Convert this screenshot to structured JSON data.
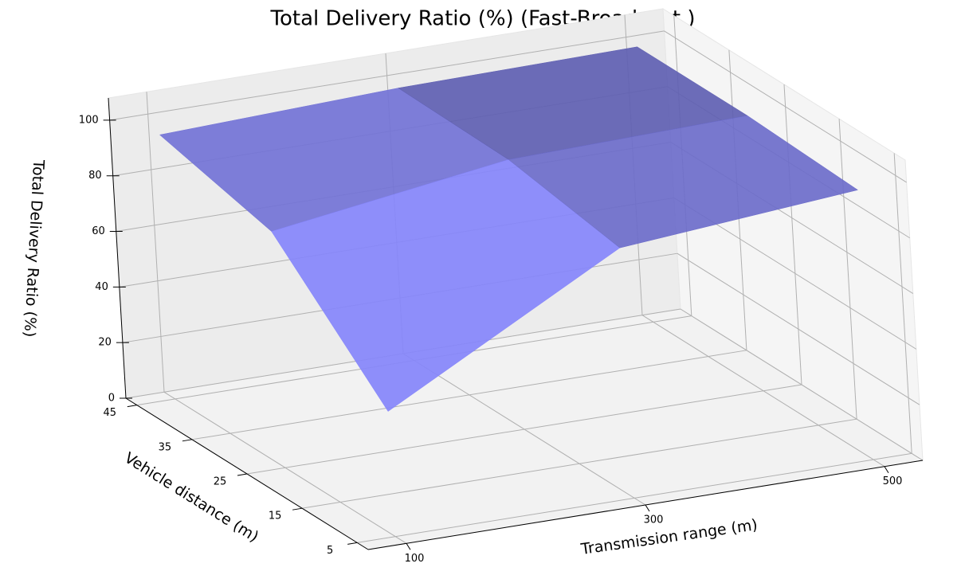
{
  "chart_data": {
    "type": "surface",
    "title": "Total Delivery Ratio (%) (Fast-Broadcast )",
    "xlabel": "Transmission range (m)",
    "ylabel": "Vehicle distance (m)",
    "zlabel": "Total Delivery Ratio (%)",
    "x": [
      100,
      300,
      500
    ],
    "y": [
      5,
      25,
      45
    ],
    "z": [
      [
        45,
        90,
        97
      ],
      [
        85,
        97,
        99
      ],
      [
        95,
        98,
        99
      ]
    ],
    "color": "#7b7be6",
    "xlim": [
      68,
      532
    ],
    "ylim": [
      3,
      47
    ],
    "zlim": [
      0,
      108
    ],
    "xticks": [
      100,
      300,
      500
    ],
    "yticks": [
      5,
      15,
      25,
      35,
      45
    ],
    "zticks": [
      0,
      20,
      40,
      60,
      80,
      100
    ],
    "grid": true
  }
}
